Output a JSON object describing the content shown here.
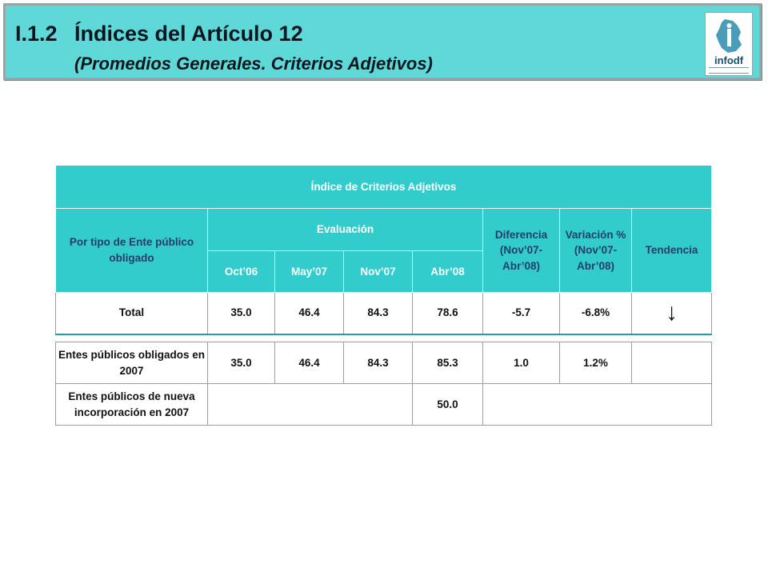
{
  "header": {
    "section_number": "I.1.2",
    "title": "Índices del Artículo 12",
    "subtitle": "(Promedios Generales. Criterios Adjetivos)",
    "logo_text": "infodf"
  },
  "table": {
    "title": "Índice de Criterios Adjetivos",
    "col_entity": "Por tipo de Ente público obligado",
    "col_evaluation": "Evaluación",
    "periods": [
      "Oct’06",
      "May’07",
      "Nov’07",
      "Abr’08"
    ],
    "col_difference": "Diferencia (Nov’07-Abr’08)",
    "col_variation": "Variación % (Nov’07-Abr’08)",
    "col_trend": "Tendencia",
    "total_row": {
      "label": "Total",
      "values": [
        "35.0",
        "46.4",
        "84.3",
        "78.6"
      ],
      "difference": "-5.7",
      "variation": "-6.8%",
      "trend_symbol": "↓",
      "trend_icon": "arrow-down-icon"
    },
    "rows": [
      {
        "label": "Entes públicos obligados en 2007",
        "values": [
          "35.0",
          "46.4",
          "84.3",
          "85.3"
        ],
        "difference": "1.0",
        "variation": "1.2%",
        "trend_symbol": ""
      },
      {
        "label": "Entes públicos de nueva incorporación en 2007",
        "value_abr08": "50.0"
      }
    ]
  },
  "colors": {
    "header_bg": "#5fd8d8",
    "table_header_bg": "#33cccc",
    "table_border": "#33cccc"
  }
}
